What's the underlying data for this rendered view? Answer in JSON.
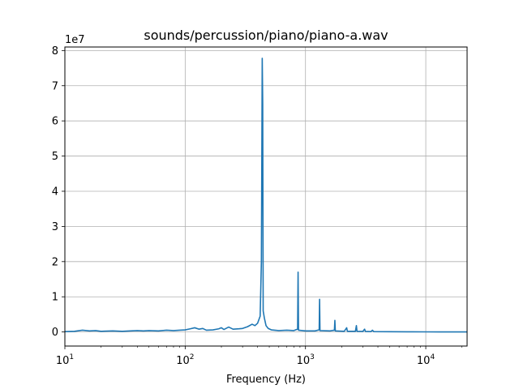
{
  "chart_data": {
    "type": "line",
    "title": "sounds/percussion/piano/piano-a.wav",
    "xlabel": "Frequency (Hz)",
    "ylabel": "",
    "x_scale": "log",
    "xlim": [
      10,
      22050
    ],
    "ylim": [
      -4000000,
      81000000
    ],
    "y_multiplier_label": "1e7",
    "x_ticks": [
      {
        "value": 10,
        "base": "10",
        "exp": "1"
      },
      {
        "value": 100,
        "base": "10",
        "exp": "2"
      },
      {
        "value": 1000,
        "base": "10",
        "exp": "3"
      },
      {
        "value": 10000,
        "base": "10",
        "exp": "4"
      }
    ],
    "y_ticks": [
      {
        "value": 0,
        "label": "0"
      },
      {
        "value": 10000000,
        "label": "1"
      },
      {
        "value": 20000000,
        "label": "2"
      },
      {
        "value": 30000000,
        "label": "3"
      },
      {
        "value": 40000000,
        "label": "4"
      },
      {
        "value": 50000000,
        "label": "5"
      },
      {
        "value": 60000000,
        "label": "6"
      },
      {
        "value": 70000000,
        "label": "7"
      },
      {
        "value": 80000000,
        "label": "8"
      }
    ],
    "grid": true,
    "line_color": "#1f77b4",
    "series": [
      {
        "points": [
          [
            10,
            100000
          ],
          [
            12,
            200000
          ],
          [
            14,
            500000
          ],
          [
            16,
            300000
          ],
          [
            18,
            400000
          ],
          [
            20,
            200000
          ],
          [
            25,
            300000
          ],
          [
            30,
            200000
          ],
          [
            35,
            300000
          ],
          [
            40,
            400000
          ],
          [
            45,
            300000
          ],
          [
            50,
            400000
          ],
          [
            60,
            300000
          ],
          [
            70,
            500000
          ],
          [
            80,
            400000
          ],
          [
            90,
            500000
          ],
          [
            100,
            600000
          ],
          [
            110,
            900000
          ],
          [
            120,
            1200000
          ],
          [
            130,
            800000
          ],
          [
            140,
            1000000
          ],
          [
            150,
            500000
          ],
          [
            170,
            600000
          ],
          [
            190,
            900000
          ],
          [
            200,
            1200000
          ],
          [
            210,
            700000
          ],
          [
            230,
            1400000
          ],
          [
            250,
            800000
          ],
          [
            280,
            900000
          ],
          [
            300,
            1000000
          ],
          [
            330,
            1500000
          ],
          [
            360,
            2200000
          ],
          [
            380,
            1800000
          ],
          [
            400,
            2500000
          ],
          [
            420,
            4500000
          ],
          [
            430,
            20000000
          ],
          [
            437,
            77800000
          ],
          [
            441,
            65000000
          ],
          [
            445,
            6000000
          ],
          [
            455,
            4000000
          ],
          [
            470,
            1800000
          ],
          [
            490,
            1000000
          ],
          [
            520,
            600000
          ],
          [
            600,
            400000
          ],
          [
            700,
            500000
          ],
          [
            800,
            400000
          ],
          [
            860,
            800000
          ],
          [
            868,
            17000000
          ],
          [
            875,
            500000
          ],
          [
            1000,
            300000
          ],
          [
            1200,
            300000
          ],
          [
            1300,
            600000
          ],
          [
            1310,
            9300000
          ],
          [
            1320,
            400000
          ],
          [
            1600,
            300000
          ],
          [
            1740,
            500000
          ],
          [
            1755,
            3300000
          ],
          [
            1770,
            300000
          ],
          [
            2100,
            200000
          ],
          [
            2200,
            1200000
          ],
          [
            2230,
            200000
          ],
          [
            2600,
            200000
          ],
          [
            2650,
            1800000
          ],
          [
            2680,
            200000
          ],
          [
            3000,
            150000
          ],
          [
            3100,
            800000
          ],
          [
            3150,
            150000
          ],
          [
            3500,
            100000
          ],
          [
            3600,
            500000
          ],
          [
            3700,
            100000
          ],
          [
            5000,
            80000
          ],
          [
            7000,
            50000
          ],
          [
            10000,
            30000
          ],
          [
            13000,
            20000
          ],
          [
            16000,
            10000
          ],
          [
            22050,
            5000
          ]
        ]
      }
    ]
  }
}
